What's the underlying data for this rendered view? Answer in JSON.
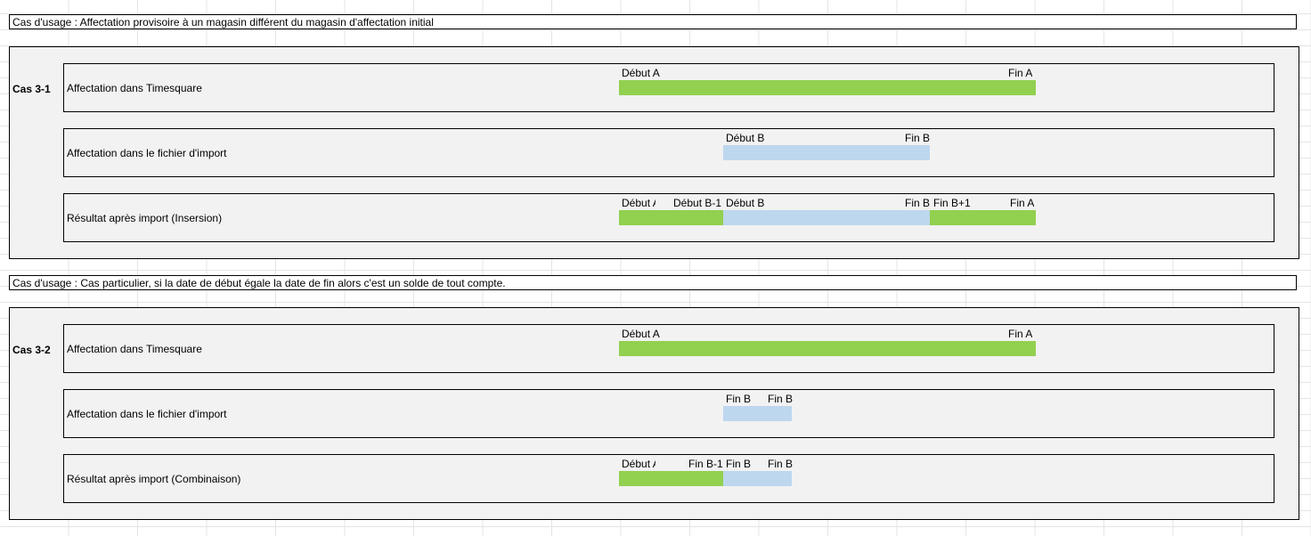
{
  "colors": {
    "timesquare": "#92d050",
    "import": "#bdd7ee"
  },
  "blocks": [
    {
      "banner": "Cas d'usage : Affectation provisoire à un magasin différent du magasin d'affectation initial",
      "case_label": "Cas 3-1",
      "rows": [
        {
          "label": "Affectation dans Timesquare",
          "segments": [
            {
              "kind": "timesquare"
            }
          ],
          "markers": [
            "Début A",
            "Fin  A"
          ]
        },
        {
          "label": "Affectation dans le fichier d'import",
          "segments": [
            {
              "kind": "import"
            }
          ],
          "markers": [
            "Début B",
            "Fin B"
          ]
        },
        {
          "label": "Résultat après import (Insersion)",
          "segments": [
            {
              "kind": "timesquare"
            },
            {
              "kind": "import"
            },
            {
              "kind": "timesquare"
            }
          ],
          "markers": [
            "Début A",
            "Début B-1",
            "Début B",
            "Fin B",
            "Fin B+1",
            "Fin A"
          ]
        }
      ]
    },
    {
      "banner": "Cas d'usage : Cas particulier, si la date de début égale la date de fin alors c'est un solde de tout compte.",
      "case_label": "Cas 3-2",
      "rows": [
        {
          "label": "Affectation dans Timesquare",
          "segments": [
            {
              "kind": "timesquare"
            }
          ],
          "markers": [
            "Début A",
            "Fin  A"
          ]
        },
        {
          "label": "Affectation dans le fichier d'import",
          "segments": [
            {
              "kind": "import"
            }
          ],
          "markers": [
            "Fin B",
            "Fin B"
          ]
        },
        {
          "label": "Résultat après import (Combinaison)",
          "segments": [
            {
              "kind": "timesquare"
            },
            {
              "kind": "import"
            }
          ],
          "markers": [
            "Début A",
            "Fin B-1",
            "Fin B",
            "Fin B"
          ]
        }
      ]
    }
  ]
}
